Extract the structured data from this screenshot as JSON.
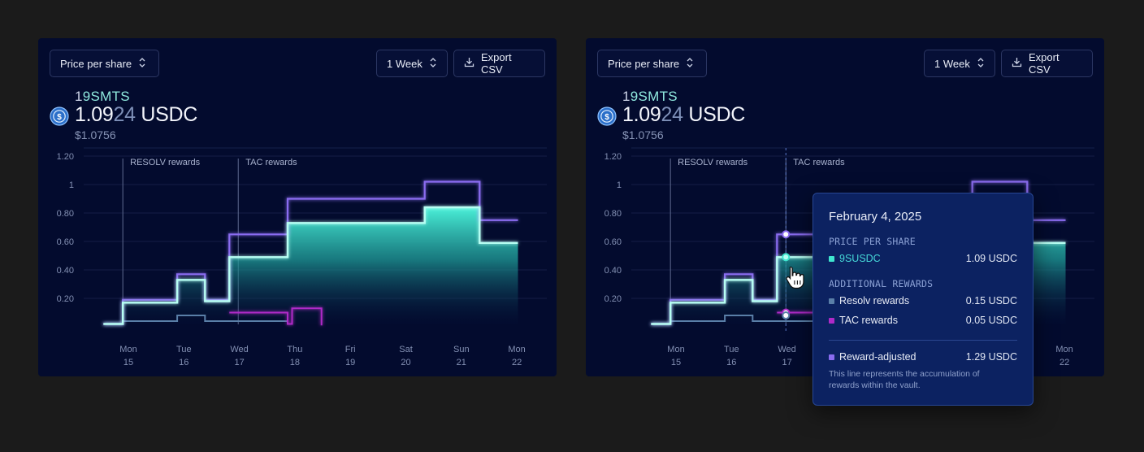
{
  "panels": [
    {
      "metric_label": "Price per share",
      "range_label": "1 Week",
      "export_label": "Export CSV",
      "symbol_lead": "1",
      "symbol_rest": "9SMTS",
      "price_main": "1.09",
      "price_dim": "24",
      "price_unit": "USDC",
      "usd_value": "$1.0756",
      "show_tooltip": false
    },
    {
      "metric_label": "Price per share",
      "range_label": "1 Week",
      "export_label": "Export CSV",
      "symbol_lead": "1",
      "symbol_rest": "9SMTS",
      "price_main": "1.09",
      "price_dim": "24",
      "price_unit": "USDC",
      "usd_value": "$1.0756",
      "show_tooltip": true
    }
  ],
  "icons": {
    "metric_chevron": "chevron-up-down-icon",
    "range_chevron": "chevron-up-down-icon",
    "export": "download-icon",
    "coin": "usdc-coin-icon",
    "cursor": "hand-pointer-icon"
  },
  "colors": {
    "background": "#1b1b1b",
    "panel": "#030b2e",
    "price_per_share": "#3fe6cf",
    "resolv_rewards": "#5a7fa8",
    "tac_rewards": "#b02ac8",
    "reward_adjusted": "#8a6cf0",
    "tooltip_bg": "#0c2261"
  },
  "chart_data": {
    "type": "area",
    "y_ticks": [
      "1.20",
      "1",
      "0.80",
      "0.60",
      "0.40",
      "0.20"
    ],
    "ylim": [
      0,
      1.3
    ],
    "x_labels": [
      {
        "day": "Mon",
        "date": "15"
      },
      {
        "day": "Tue",
        "date": "16"
      },
      {
        "day": "Wed",
        "date": "17"
      },
      {
        "day": "Thu",
        "date": "18"
      },
      {
        "day": "Fri",
        "date": "19"
      },
      {
        "day": "Sat",
        "date": "20"
      },
      {
        "day": "Sun",
        "date": "21"
      },
      {
        "day": "Mon",
        "date": "22"
      }
    ],
    "x_domain": [
      -0.45,
      7.02
    ],
    "annotations": [
      {
        "label": "RESOLV rewards",
        "x": -0.1
      },
      {
        "label": "TAC rewards",
        "x": 1.98
      }
    ],
    "series": [
      {
        "key": "price",
        "values": [
          [
            -0.45,
            0.02
          ],
          [
            -0.1,
            0.02
          ],
          [
            -0.1,
            0.17
          ],
          [
            0.88,
            0.17
          ],
          [
            0.88,
            0.33
          ],
          [
            1.38,
            0.33
          ],
          [
            1.38,
            0.18
          ],
          [
            1.82,
            0.18
          ],
          [
            1.82,
            0.49
          ],
          [
            2.87,
            0.49
          ],
          [
            2.87,
            0.73
          ],
          [
            5.34,
            0.73
          ],
          [
            5.34,
            0.84
          ],
          [
            6.33,
            0.84
          ],
          [
            6.33,
            0.59
          ],
          [
            7.02,
            0.59
          ]
        ]
      },
      {
        "key": "reward_adjusted",
        "values": [
          [
            -0.45,
            0.02
          ],
          [
            -0.1,
            0.02
          ],
          [
            -0.1,
            0.19
          ],
          [
            0.88,
            0.19
          ],
          [
            0.88,
            0.37
          ],
          [
            1.38,
            0.37
          ],
          [
            1.38,
            0.19
          ],
          [
            1.82,
            0.19
          ],
          [
            1.82,
            0.65
          ],
          [
            2.87,
            0.65
          ],
          [
            2.87,
            0.9
          ],
          [
            5.34,
            0.9
          ],
          [
            5.34,
            1.02
          ],
          [
            6.33,
            1.02
          ],
          [
            6.33,
            0.75
          ],
          [
            7.02,
            0.75
          ]
        ]
      },
      {
        "key": "resolv",
        "values": [
          [
            -0.1,
            0.04
          ],
          [
            0.88,
            0.04
          ],
          [
            0.88,
            0.08
          ],
          [
            1.38,
            0.08
          ],
          [
            1.38,
            0.04
          ],
          [
            2.87,
            0.04
          ]
        ]
      },
      {
        "key": "tac",
        "values": [
          [
            1.82,
            0.1
          ],
          [
            2.87,
            0.1
          ],
          [
            2.87,
            0.02
          ],
          [
            2.87,
            0.02
          ],
          [
            2.95,
            0.02
          ],
          [
            2.95,
            0.13
          ],
          [
            3.48,
            0.13
          ],
          [
            3.48,
            0.01
          ]
        ]
      }
    ],
    "hover_x": 1.98,
    "hover_points": [
      0.65,
      0.49,
      0.1,
      0.08
    ]
  },
  "tooltip": {
    "date": "February 4, 2025",
    "section_price": "PRICE PER SHARE",
    "price_label": "9SUSDC",
    "price_value": "1.09 USDC",
    "section_rewards": "ADDITIONAL REWARDS",
    "resolv_label": "Resolv rewards",
    "resolv_value": "0.15 USDC",
    "tac_label": "TAC rewards",
    "tac_value": "0.05 USDC",
    "adjusted_label": "Reward-adjusted",
    "adjusted_value": "1.29 USDC",
    "note": "This line represents the accumulation of rewards within the vault."
  }
}
